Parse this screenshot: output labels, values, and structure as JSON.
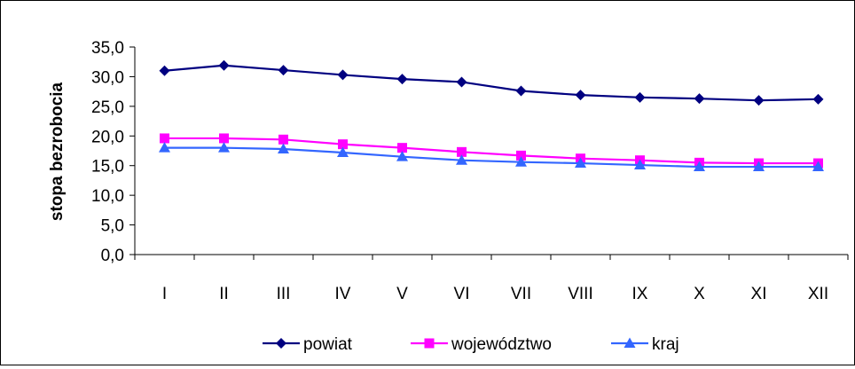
{
  "chart_data": {
    "type": "line",
    "title": "",
    "xlabel": "",
    "ylabel": "stopa bezrobocia",
    "categories": [
      "I",
      "II",
      "III",
      "IV",
      "V",
      "VI",
      "VII",
      "VIII",
      "IX",
      "X",
      "XI",
      "XII"
    ],
    "y_ticks": [
      "0,0",
      "5,0",
      "10,0",
      "15,0",
      "20,0",
      "25,0",
      "30,0",
      "35,0"
    ],
    "ylim": [
      0,
      35
    ],
    "grid": false,
    "legend_position": "bottom",
    "series": [
      {
        "name": "powiat",
        "color": "#000080",
        "marker": "diamond",
        "values": [
          31.0,
          31.9,
          31.1,
          30.3,
          29.6,
          29.1,
          27.6,
          26.9,
          26.5,
          26.3,
          26.0,
          26.2
        ]
      },
      {
        "name": "województwo",
        "color": "#FF00FF",
        "marker": "square",
        "values": [
          19.6,
          19.6,
          19.4,
          18.6,
          18.0,
          17.3,
          16.7,
          16.2,
          15.9,
          15.5,
          15.4,
          15.4
        ]
      },
      {
        "name": "kraj",
        "color": "#3366FF",
        "marker": "triangle",
        "values": [
          18.0,
          18.0,
          17.8,
          17.2,
          16.5,
          15.9,
          15.6,
          15.4,
          15.1,
          14.8,
          14.8,
          14.8
        ]
      }
    ]
  }
}
